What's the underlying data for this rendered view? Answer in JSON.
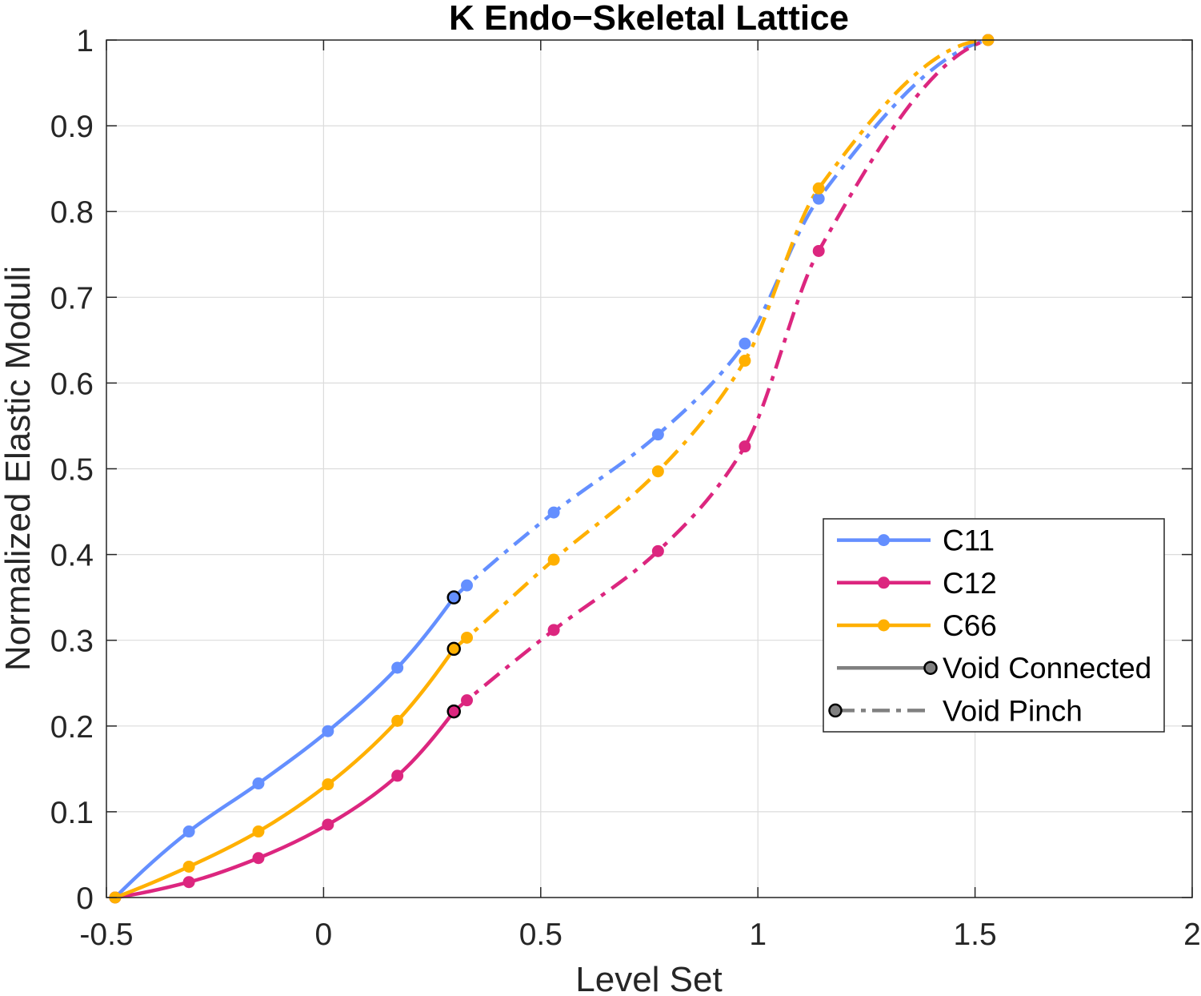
{
  "chart_data": {
    "type": "line",
    "title": "K Endo−Skeletal Lattice",
    "xlabel": "Level Set",
    "ylabel": "Normalized Elastic Moduli",
    "xlim": [
      -0.5,
      2
    ],
    "ylim": [
      0,
      1
    ],
    "xticks": [
      -0.5,
      0,
      0.5,
      1,
      1.5,
      2
    ],
    "xtick_labels": [
      "-0.5",
      "0",
      "0.5",
      "1",
      "1.5",
      "2"
    ],
    "yticks": [
      0,
      0.1,
      0.2,
      0.3,
      0.4,
      0.5,
      0.6,
      0.7,
      0.8,
      0.9,
      1
    ],
    "ytick_labels": [
      "0",
      "0.1",
      "0.2",
      "0.3",
      "0.4",
      "0.5",
      "0.6",
      "0.7",
      "0.8",
      "0.9",
      "1"
    ],
    "grid": true,
    "box": true,
    "legend_position": "right",
    "axis_color": "#262626",
    "grid_color": "#dcdcdc",
    "transition_marker_edge": "#000000",
    "series": [
      {
        "name": "C11",
        "color": "#648FFF",
        "void_connected": {
          "x": [
            -0.48,
            -0.31,
            -0.15,
            0.01,
            0.17,
            0.3
          ],
          "y": [
            0,
            0.077,
            0.133,
            0.194,
            0.268,
            0.35
          ]
        },
        "void_pinch": {
          "x": [
            0.3,
            0.33,
            0.53,
            0.77,
            0.97,
            1.14,
            1.53
          ],
          "y": [
            0.35,
            0.364,
            0.449,
            0.54,
            0.646,
            0.815,
            1
          ]
        }
      },
      {
        "name": "C12",
        "color": "#DC267F",
        "void_connected": {
          "x": [
            -0.48,
            -0.31,
            -0.15,
            0.01,
            0.17,
            0.3
          ],
          "y": [
            0,
            0.018,
            0.046,
            0.085,
            0.142,
            0.217
          ]
        },
        "void_pinch": {
          "x": [
            0.3,
            0.33,
            0.53,
            0.77,
            0.97,
            1.14,
            1.53
          ],
          "y": [
            0.217,
            0.23,
            0.312,
            0.404,
            0.526,
            0.754,
            1
          ]
        }
      },
      {
        "name": "C66",
        "color": "#FFB000",
        "void_connected": {
          "x": [
            -0.48,
            -0.31,
            -0.15,
            0.01,
            0.17,
            0.3
          ],
          "y": [
            0,
            0.036,
            0.077,
            0.132,
            0.206,
            0.29
          ]
        },
        "void_pinch": {
          "x": [
            0.3,
            0.33,
            0.53,
            0.77,
            0.97,
            1.14,
            1.53
          ],
          "y": [
            0.29,
            0.303,
            0.394,
            0.497,
            0.626,
            0.827,
            1
          ]
        }
      }
    ],
    "legend": [
      {
        "label": "C11",
        "color": "#648FFF",
        "line": "solid",
        "marker": "center"
      },
      {
        "label": "C12",
        "color": "#DC267F",
        "line": "solid",
        "marker": "center"
      },
      {
        "label": "C66",
        "color": "#FFB000",
        "line": "solid",
        "marker": "center"
      },
      {
        "label": "Void Connected",
        "color": "#808080",
        "line": "solid",
        "marker": "right",
        "marker_edge": "#000000"
      },
      {
        "label": "Void Pinch",
        "color": "#808080",
        "line": "dash-dot",
        "marker": "left",
        "marker_edge": "#000000"
      }
    ]
  }
}
